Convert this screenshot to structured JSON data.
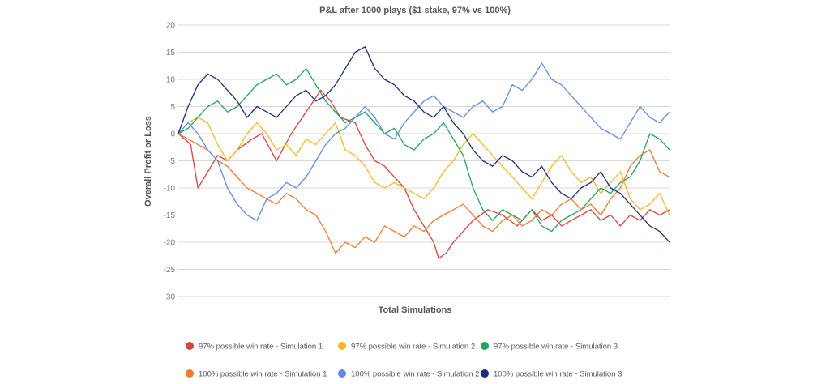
{
  "chart_data": {
    "type": "line",
    "title": "P&L after 1000 plays ($1 stake, 97% vs 100%)",
    "xlabel": "Total Simulations",
    "ylabel": "Overall Profit or Loss",
    "ylim": [
      -30,
      20
    ],
    "xlim": [
      0,
      1000
    ],
    "yticks": [
      20,
      15,
      10,
      5,
      0,
      -5,
      -10,
      -15,
      -20,
      -25,
      -30
    ],
    "legend_position": "bottom",
    "series": [
      {
        "name": "97% possible win rate - Simulation 1",
        "color": "#d9423d",
        "x": [
          0,
          25,
          40,
          60,
          80,
          100,
          120,
          150,
          170,
          200,
          230,
          260,
          290,
          310,
          330,
          360,
          380,
          400,
          420,
          440,
          460,
          480,
          500,
          520,
          530,
          545,
          560,
          580,
          600,
          630,
          660,
          690,
          720,
          740,
          760,
          780,
          800,
          820,
          840,
          860,
          880,
          900,
          920,
          940,
          960,
          980,
          1000
        ],
        "y": [
          0,
          -2,
          -10,
          -7,
          -4,
          -5,
          -3,
          -1,
          0,
          -5,
          0,
          4,
          8,
          6,
          3,
          2,
          -2,
          -5,
          -6,
          -8,
          -10,
          -14,
          -17,
          -20,
          -23,
          -22,
          -20,
          -18,
          -16,
          -14,
          -15,
          -17,
          -14,
          -16,
          -15,
          -17,
          -16,
          -15,
          -14,
          -16,
          -15,
          -17,
          -15,
          -16,
          -14,
          -15,
          -14
        ]
      },
      {
        "name": "97% possible win rate - Simulation 2",
        "color": "#f5b824",
        "x": [
          0,
          20,
          40,
          60,
          80,
          100,
          120,
          140,
          160,
          180,
          200,
          220,
          240,
          260,
          280,
          300,
          320,
          340,
          360,
          380,
          400,
          420,
          440,
          460,
          480,
          500,
          520,
          540,
          560,
          580,
          600,
          620,
          640,
          660,
          680,
          700,
          720,
          740,
          760,
          780,
          800,
          820,
          840,
          860,
          880,
          900,
          920,
          940,
          960,
          980,
          1000
        ],
        "y": [
          0,
          2,
          3,
          2,
          -2,
          -5,
          -3,
          0,
          2,
          0,
          -3,
          -2,
          -4,
          -1,
          -2,
          0,
          2,
          -3,
          -4,
          -6,
          -9,
          -10,
          -9,
          -10,
          -11,
          -12,
          -10,
          -7,
          -5,
          -2,
          0,
          -2,
          -4,
          -6,
          -8,
          -10,
          -12,
          -9,
          -6,
          -4,
          -7,
          -9,
          -8,
          -11,
          -9,
          -7,
          -12,
          -14,
          -13,
          -11,
          -15
        ]
      },
      {
        "name": "97% possible win rate - Simulation 3",
        "color": "#22a35e",
        "x": [
          0,
          20,
          40,
          60,
          80,
          100,
          120,
          140,
          160,
          180,
          200,
          220,
          240,
          260,
          280,
          300,
          320,
          340,
          360,
          380,
          400,
          420,
          440,
          460,
          480,
          500,
          520,
          540,
          560,
          580,
          600,
          620,
          640,
          660,
          680,
          700,
          720,
          740,
          760,
          780,
          800,
          820,
          840,
          860,
          880,
          900,
          920,
          940,
          960,
          980,
          1000
        ],
        "y": [
          0,
          1,
          3,
          5,
          6,
          4,
          5,
          7,
          9,
          10,
          11,
          9,
          10,
          12,
          9,
          6,
          4,
          2,
          3,
          4,
          2,
          0,
          1,
          -2,
          -3,
          -1,
          0,
          2,
          -1,
          -4,
          -10,
          -14,
          -16,
          -14,
          -15,
          -16,
          -14,
          -17,
          -18,
          -16,
          -15,
          -14,
          -12,
          -10,
          -11,
          -9,
          -8,
          -5,
          0,
          -1,
          -3
        ]
      },
      {
        "name": "100% possible win rate - Simulation 1",
        "color": "#ee7b30",
        "x": [
          0,
          20,
          40,
          60,
          80,
          100,
          120,
          140,
          160,
          180,
          200,
          220,
          240,
          260,
          280,
          300,
          320,
          340,
          360,
          380,
          400,
          420,
          440,
          460,
          480,
          500,
          520,
          540,
          560,
          580,
          600,
          620,
          640,
          660,
          680,
          700,
          720,
          740,
          760,
          780,
          800,
          820,
          840,
          860,
          880,
          900,
          920,
          940,
          960,
          980,
          1000
        ],
        "y": [
          0,
          -1,
          -2,
          -3,
          -5,
          -6,
          -8,
          -10,
          -11,
          -12,
          -13,
          -11,
          -12,
          -14,
          -15,
          -18,
          -22,
          -20,
          -21,
          -19,
          -20,
          -17,
          -18,
          -19,
          -17,
          -18,
          -16,
          -15,
          -14,
          -13,
          -15,
          -17,
          -18,
          -16,
          -15,
          -17,
          -16,
          -14,
          -15,
          -13,
          -12,
          -14,
          -13,
          -15,
          -12,
          -10,
          -6,
          -4,
          -3,
          -7,
          -8
        ]
      },
      {
        "name": "100% possible win rate - Simulation 2",
        "color": "#5d8de0",
        "x": [
          0,
          20,
          40,
          60,
          80,
          100,
          120,
          140,
          160,
          180,
          200,
          220,
          240,
          260,
          280,
          300,
          320,
          340,
          360,
          380,
          400,
          420,
          440,
          460,
          480,
          500,
          520,
          540,
          560,
          580,
          600,
          620,
          640,
          660,
          680,
          700,
          720,
          740,
          760,
          780,
          800,
          820,
          840,
          860,
          880,
          900,
          920,
          940,
          960,
          980,
          1000
        ],
        "y": [
          0,
          2,
          0,
          -3,
          -5,
          -10,
          -13,
          -15,
          -16,
          -12,
          -11,
          -9,
          -10,
          -8,
          -5,
          -2,
          0,
          1,
          3,
          5,
          3,
          0,
          -1,
          2,
          4,
          6,
          7,
          5,
          4,
          3,
          5,
          6,
          4,
          5,
          9,
          8,
          10,
          13,
          10,
          9,
          7,
          5,
          3,
          1,
          0,
          -1,
          2,
          5,
          3,
          2,
          4
        ]
      },
      {
        "name": "100% possible win rate - Simulation 3",
        "color": "#1b2f78",
        "x": [
          0,
          20,
          40,
          60,
          80,
          100,
          120,
          140,
          160,
          180,
          200,
          220,
          240,
          260,
          280,
          300,
          320,
          340,
          360,
          380,
          400,
          420,
          440,
          460,
          480,
          500,
          520,
          540,
          560,
          580,
          600,
          620,
          640,
          660,
          680,
          700,
          720,
          740,
          760,
          780,
          800,
          820,
          840,
          860,
          880,
          900,
          920,
          940,
          960,
          980,
          1000
        ],
        "y": [
          0,
          5,
          9,
          11,
          10,
          8,
          6,
          3,
          5,
          4,
          3,
          5,
          7,
          8,
          6,
          7,
          9,
          12,
          15,
          16,
          12,
          10,
          9,
          7,
          6,
          4,
          3,
          5,
          2,
          0,
          -3,
          -5,
          -6,
          -4,
          -5,
          -7,
          -8,
          -6,
          -9,
          -11,
          -12,
          -10,
          -9,
          -7,
          -10,
          -11,
          -13,
          -15,
          -17,
          -18,
          -20
        ]
      }
    ]
  }
}
